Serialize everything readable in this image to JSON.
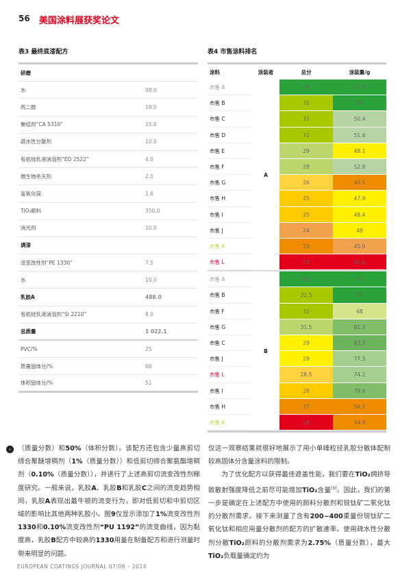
{
  "header": {
    "page_number": "56",
    "section_title": "美国涂料展获奖论文"
  },
  "table3": {
    "caption": "表3 最终底漆配方",
    "rows": [
      {
        "label": "研磨",
        "value": "",
        "section": true
      },
      {
        "label": "水",
        "value": "98.0"
      },
      {
        "label": "丙二醇",
        "value": "18.0"
      },
      {
        "label": "聚结剂“CA 5310”",
        "value": "15.0"
      },
      {
        "label": "疏水性分散剂",
        "value": "10.0"
      },
      {
        "label": "有机硅乳液消泡剂“ED 2522”",
        "value": "4.0"
      },
      {
        "label": "微生物杀灭剂",
        "value": "2.0"
      },
      {
        "label": "氢氧化铵",
        "value": "1.6"
      },
      {
        "label": "TiO₂颜料",
        "value": "350.0"
      },
      {
        "label": "消光剂",
        "value": "10.0"
      },
      {
        "label": "调漆",
        "value": "",
        "section": true
      },
      {
        "label": "流变改性剂“PE 1330”",
        "value": "7.5"
      },
      {
        "label": "水",
        "value": "10.0"
      },
      {
        "label": "乳胶A",
        "value": "488.0",
        "section": true
      },
      {
        "label": "有机硅乳液消泡剂“SI 2210”",
        "value": "8.0"
      },
      {
        "label": "总质量",
        "value": "1 022.1",
        "section": true,
        "thick": true
      },
      {
        "label": "PVC/%",
        "value": "25"
      },
      {
        "label": "质量固体分/%",
        "value": "66"
      },
      {
        "label": "体积固体分/%",
        "value": "51"
      }
    ]
  },
  "table4": {
    "caption": "表4 市售涂料排名",
    "headers": [
      "涂料",
      "涂装者",
      "总分",
      "涂装量/g"
    ],
    "colors": {
      "dg": "#2ba33b",
      "yg": "#a9c800",
      "lg": "#b6d4a4",
      "lg2": "#bcd66e",
      "mg": "#7fbd68",
      "mg2": "#6cb45b",
      "pg": "#a5cf8e",
      "pl": "#d6e48a",
      "y": "#fff100",
      "o": "#f08c00",
      "lo": "#f3a24c",
      "yo": "#ffd23e",
      "gd": "#fdcb00",
      "r": "#e3001b",
      "grey": "#999999",
      "kname": "#b5d334",
      "lname": "#e2003a"
    },
    "groups": [
      {
        "coater": "A",
        "rows": [
          {
            "name": "市售 A",
            "nc": "grey",
            "total": "35",
            "tc": "dg",
            "amount": "57.9",
            "ac": "dg"
          },
          {
            "name": "市售 B",
            "total": "32",
            "tc": "yg",
            "amount": "58",
            "ac": "dg"
          },
          {
            "name": "市售 C",
            "total": "31",
            "tc": "yg",
            "amount": "50.4",
            "ac": "lg"
          },
          {
            "name": "市售 D",
            "total": "31",
            "tc": "yg",
            "amount": "51.6",
            "ac": "lg"
          },
          {
            "name": "市售 E",
            "total": "29",
            "tc": "lg2",
            "amount": "48.1",
            "ac": "y"
          },
          {
            "name": "市售 F",
            "total": "29",
            "tc": "lg2",
            "amount": "52.8",
            "ac": "lg"
          },
          {
            "name": "市售 G",
            "total": "26",
            "tc": "yo",
            "amount": "44.1",
            "ac": "o"
          },
          {
            "name": "市售 H",
            "total": "25",
            "tc": "gd",
            "amount": "47.9",
            "ac": "y"
          },
          {
            "name": "市售 I",
            "total": "25",
            "tc": "gd",
            "amount": "48.4",
            "ac": "y"
          },
          {
            "name": "市售 J",
            "total": "24",
            "tc": "lo",
            "amount": "48",
            "ac": "y"
          },
          {
            "name": "市售 K",
            "nc": "kname",
            "total": "23",
            "tc": "o",
            "amount": "45.9",
            "ac": "lo"
          },
          {
            "name": "市售 L",
            "nc": "lname",
            "total": "19",
            "tc": "r",
            "amount": "42.6",
            "ac": "r"
          }
        ]
      },
      {
        "coater": "B",
        "rows": [
          {
            "name": "市售 A",
            "nc": "grey",
            "total": "35.5",
            "tc": "dg",
            "amount": "56",
            "ac": "dg"
          },
          {
            "name": "市售 B",
            "total": "32.5",
            "tc": "yg",
            "amount": "55",
            "ac": "dg"
          },
          {
            "name": "市售 F",
            "total": "32",
            "tc": "yg",
            "amount": "68",
            "ac": "pl"
          },
          {
            "name": "市售 G",
            "total": "31.5",
            "tc": "lg2",
            "amount": "81.3",
            "ac": "mg"
          },
          {
            "name": "市售 C",
            "total": "29",
            "tc": "y",
            "amount": "83.5",
            "ac": "mg2"
          },
          {
            "name": "市售 J",
            "total": "29",
            "tc": "y",
            "amount": "77.3",
            "ac": "pg"
          },
          {
            "name": "市售 L",
            "nc": "lname",
            "total": "28.5",
            "tc": "yo",
            "amount": "74.2",
            "ac": "pg"
          },
          {
            "name": "市售 I",
            "total": "28",
            "tc": "gd",
            "amount": "79.6",
            "ac": "mg"
          },
          {
            "name": "市售 H",
            "total": "27",
            "tc": "o",
            "amount": "56.1",
            "ac": "o"
          },
          {
            "name": "市售 K",
            "nc": "kname",
            "total": "26",
            "tc": "r",
            "amount": "54.9",
            "ac": "o"
          }
        ]
      }
    ]
  },
  "body": {
    "left": [
      [
        {
          "t": "（质量分数）和"
        },
        {
          "t": "50%",
          "b": 1
        },
        {
          "t": "（体积分数）。该配方还包含少量高剪切缔合聚醚增稠剂（"
        },
        {
          "t": "1%",
          "b": 1
        },
        {
          "t": "（质量分数））和低剪切缔合聚氨酯增稠剂（"
        },
        {
          "t": "0.10%",
          "b": 1
        },
        {
          "t": "（质量分数）），并进行了上述高剪切流变改性剂梯度研究。一般来说，乳胶"
        },
        {
          "t": "A",
          "b": 1
        },
        {
          "t": "、乳胶"
        },
        {
          "t": "B",
          "b": 1
        },
        {
          "t": "和乳胶"
        },
        {
          "t": "C",
          "b": 1
        },
        {
          "t": "之间的流变趋势相同，乳胶"
        },
        {
          "t": "A",
          "b": 1
        },
        {
          "t": "表现出最牛顿的流变行为，即对低剪切和中剪切区域的影响比其他两种乳胶小。图"
        },
        {
          "t": "9",
          "b": 1
        },
        {
          "t": "仅显示添加了"
        },
        {
          "t": "1%",
          "b": 1
        },
        {
          "t": "流变改性剂"
        },
        {
          "t": "1330",
          "b": 1
        },
        {
          "t": "和"
        },
        {
          "t": "0.10%",
          "b": 1
        },
        {
          "t": "流变改性剂"
        },
        {
          "t": "“PU 1192”",
          "b": 1
        },
        {
          "t": "的流变曲线，因为黏度高，乳胶"
        },
        {
          "t": "B",
          "b": 1
        },
        {
          "t": "配方中较高的"
        },
        {
          "t": "1330",
          "b": 1
        },
        {
          "t": "用量在制备配方和进行测量时带来明显的问题。"
        }
      ]
    ],
    "right": [
      [
        {
          "t": "仅这一观察结果就很好地展示了用小单峰粒径乳胶分散体配制较高固体分含量涂料的限制。"
        }
      ],
      [
        {
          "t": "　　为了优化配方以获得最佳遮盖性能，我们要在"
        },
        {
          "t": "TiO₂",
          "b": 1
        },
        {
          "t": "拥挤导致散射强度降低之前尽可能增加"
        },
        {
          "t": "TiO₂",
          "b": 1
        },
        {
          "t": "含量"
        },
        {
          "t": "[9]",
          "sup": 1
        },
        {
          "t": "。因此，我们的第一步是确定在上述配方中使用的颜料分散剂和锐钛矿二氧化钛的分散剂需求。接下来测量了含有"
        },
        {
          "t": "200~400",
          "b": 1
        },
        {
          "t": "重量份锐钛矿二氧化钛和相应用量分散剂的配方的扩散速率。使用疏水性分散剂分散"
        },
        {
          "t": "TiO₂",
          "b": 1
        },
        {
          "t": "颜料的分散剂需求为"
        },
        {
          "t": "2.75%",
          "b": 1
        },
        {
          "t": "（质量分数），最大"
        },
        {
          "t": "TiO₂",
          "b": 1
        },
        {
          "t": "负载量确定约为"
        }
      ]
    ]
  },
  "footer": {
    "text": "EUROPEAN COATINGS JOURNAL 07/08 – 2024"
  }
}
